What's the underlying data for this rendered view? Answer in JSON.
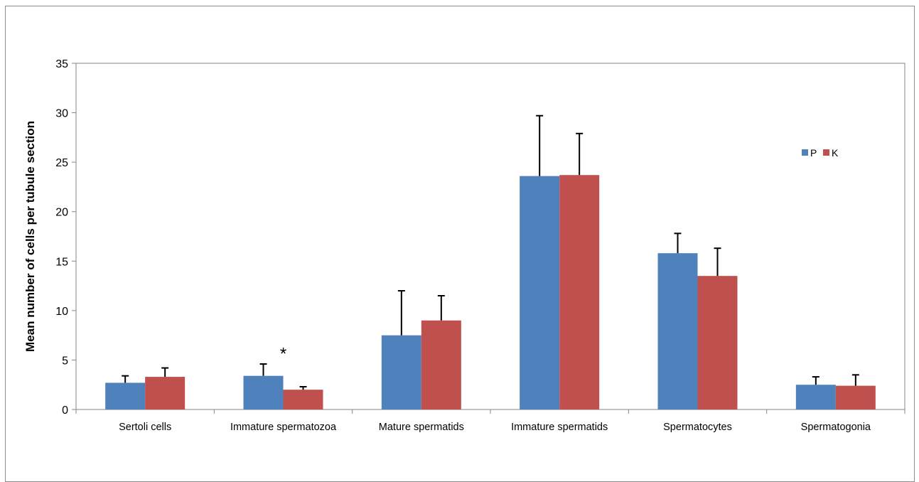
{
  "chart_data": {
    "type": "bar",
    "categories": [
      "Sertoli cells",
      "Immature spermatozoa",
      "Mature spermatids",
      "Immature spermatids",
      "Spermatocytes",
      "Spermatogonia"
    ],
    "series": [
      {
        "name": "P",
        "color": "#4F81BD",
        "values": [
          2.7,
          3.4,
          7.5,
          23.6,
          15.8,
          2.5
        ],
        "errors": [
          0.7,
          1.2,
          4.5,
          6.1,
          2.0,
          0.8
        ]
      },
      {
        "name": "K",
        "color": "#C0504D",
        "values": [
          3.3,
          2.0,
          9.0,
          23.7,
          13.5,
          2.4
        ],
        "errors": [
          0.9,
          0.3,
          2.5,
          4.2,
          2.8,
          1.1
        ]
      }
    ],
    "title": "",
    "xlabel": "",
    "ylabel": "Mean number of cells per tubule section",
    "ylim": [
      0,
      35
    ],
    "yticks": [
      "0",
      "5",
      "10",
      "15",
      "20",
      "25",
      "30",
      "35"
    ],
    "grid": false,
    "legend_position": "right",
    "annotations": [
      {
        "text": "*",
        "category": "Immature spermatozoa",
        "value": 6.3
      }
    ]
  }
}
